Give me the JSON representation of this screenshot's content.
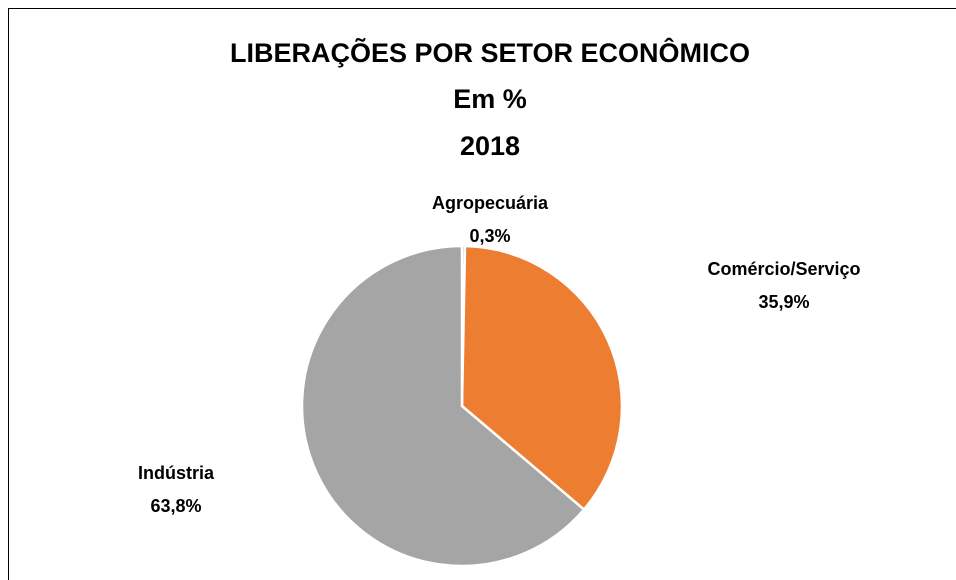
{
  "chart_data": {
    "type": "pie",
    "title": "LIBERAÇÕES POR SETOR ECONÔMICO",
    "subtitle": "Em %",
    "period": "2018",
    "categories": [
      "Agropecuária",
      "Comércio/Serviço",
      "Indústria"
    ],
    "values": [
      0.3,
      35.9,
      63.8
    ],
    "value_labels": [
      "0,3%",
      "35,9%",
      "63,8%"
    ],
    "colors": [
      "#4472c4",
      "#ed7d31",
      "#a5a5a5"
    ]
  }
}
